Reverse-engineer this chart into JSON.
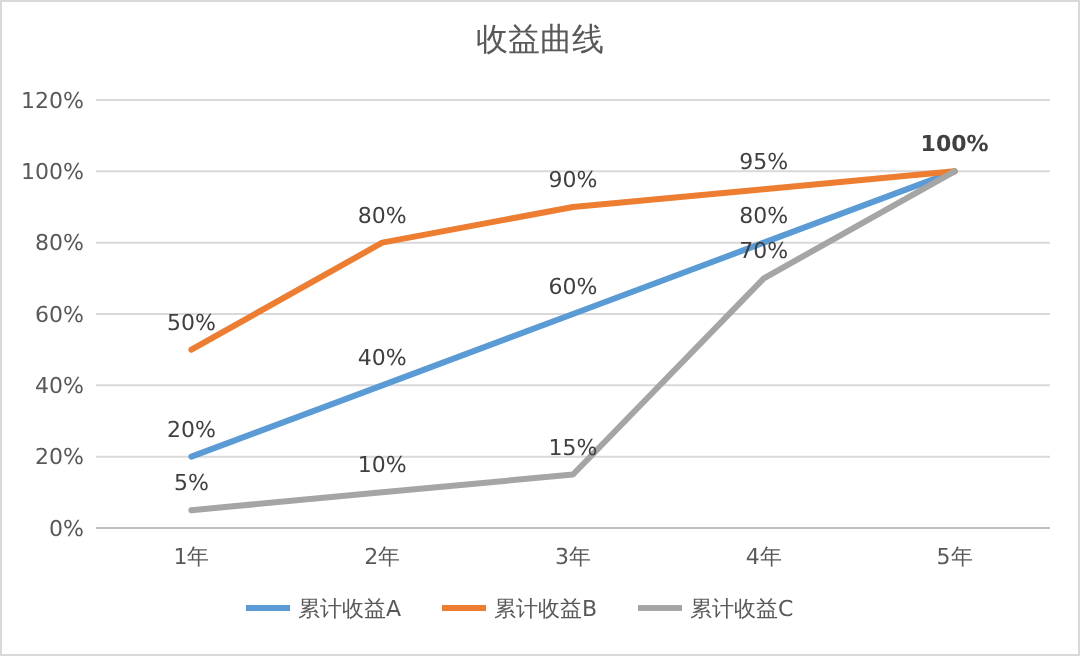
{
  "chart_data": {
    "type": "line",
    "title": "收益曲线",
    "categories": [
      "1年",
      "2年",
      "3年",
      "4年",
      "5年"
    ],
    "series": [
      {
        "name": "累计收益A",
        "color": "#5b9bd5",
        "values": [
          20,
          40,
          60,
          80,
          100
        ],
        "value_labels": [
          "20%",
          "40%",
          "60%",
          "80%",
          null
        ]
      },
      {
        "name": "累计收益B",
        "color": "#ed7d31",
        "values": [
          50,
          80,
          90,
          95,
          100
        ],
        "value_labels": [
          "50%",
          "80%",
          "90%",
          "95%",
          "100%"
        ]
      },
      {
        "name": "累计收益C",
        "color": "#a5a5a5",
        "values": [
          5,
          10,
          15,
          70,
          100
        ],
        "value_labels": [
          "5%",
          "10%",
          "15%",
          "70%",
          null
        ]
      }
    ],
    "ylim": [
      0,
      120
    ],
    "yticks": [
      {
        "value": 0,
        "label": "0%"
      },
      {
        "value": 20,
        "label": "20%"
      },
      {
        "value": 40,
        "label": "40%"
      },
      {
        "value": 60,
        "label": "60%"
      },
      {
        "value": 80,
        "label": "80%"
      },
      {
        "value": 100,
        "label": "100%"
      },
      {
        "value": 120,
        "label": "120%"
      }
    ],
    "grid": "y",
    "legend": "bottom",
    "marker": "none",
    "line_style": "solid"
  }
}
